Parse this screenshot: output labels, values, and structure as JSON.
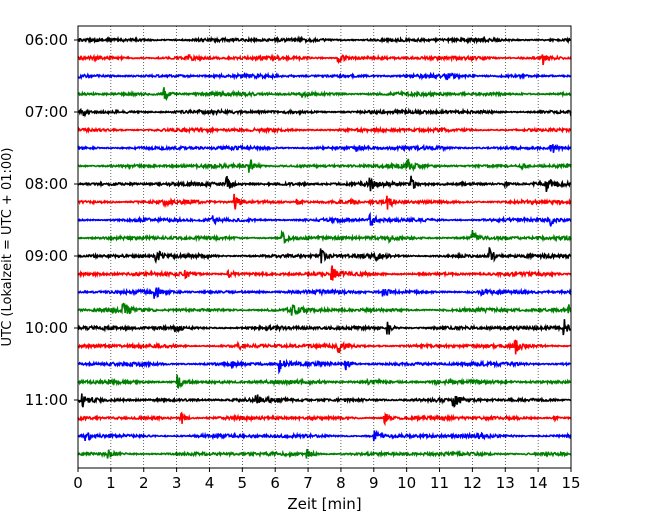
{
  "chart_data": {
    "type": "line",
    "title": "",
    "xlabel": "Zeit  [min]",
    "ylabel": "UTC (Lokalzeit = UTC + 01:00)",
    "xlim": [
      0,
      15
    ],
    "x_ticks": [
      "0",
      "1",
      "2",
      "3",
      "4",
      "5",
      "6",
      "7",
      "8",
      "9",
      "10",
      "11",
      "12",
      "13",
      "14",
      "15"
    ],
    "y_tick_labels": [
      "06:00",
      "07:00",
      "08:00",
      "09:00",
      "10:00",
      "11:00"
    ],
    "grid": "vertical dotted",
    "trace_interval_min": 15,
    "color_cycle": [
      "#000000",
      "#ff0000",
      "#0000ff",
      "#008000"
    ],
    "traces": [
      {
        "start": "06:00",
        "events": []
      },
      {
        "start": "06:15",
        "events": [
          [
            7.95,
            0.8
          ],
          [
            14.15,
            0.7
          ],
          [
            3.4,
            0.25
          ]
        ]
      },
      {
        "start": "06:30",
        "events": [
          [
            11.25,
            0.35
          ]
        ]
      },
      {
        "start": "06:45",
        "events": [
          [
            2.65,
            0.7
          ],
          [
            6.85,
            0.4
          ]
        ]
      },
      {
        "start": "07:00",
        "events": [
          [
            0.1,
            0.6
          ]
        ]
      },
      {
        "start": "07:15",
        "events": []
      },
      {
        "start": "07:30",
        "events": [
          [
            14.4,
            0.8
          ],
          [
            8.5,
            0.3
          ]
        ]
      },
      {
        "start": "07:45",
        "events": [
          [
            5.25,
            0.8
          ],
          [
            10.05,
            0.6
          ],
          [
            13.5,
            0.3
          ]
        ]
      },
      {
        "start": "08:00",
        "events": [
          [
            4.55,
            0.8
          ],
          [
            8.9,
            0.6
          ],
          [
            10.15,
            0.9
          ],
          [
            14.25,
            0.8
          ],
          [
            13.0,
            0.3
          ]
        ]
      },
      {
        "start": "08:15",
        "events": [
          [
            4.8,
            0.8
          ],
          [
            9.45,
            0.8
          ],
          [
            2.6,
            0.3
          ],
          [
            6.7,
            0.3
          ]
        ]
      },
      {
        "start": "08:30",
        "events": [
          [
            8.9,
            0.8
          ],
          [
            14.4,
            0.6
          ],
          [
            4.1,
            0.4
          ]
        ]
      },
      {
        "start": "08:45",
        "events": [
          [
            6.25,
            0.6
          ],
          [
            12.0,
            0.8
          ],
          [
            9.5,
            0.3
          ]
        ]
      },
      {
        "start": "09:00",
        "events": [
          [
            2.4,
            0.8
          ],
          [
            7.4,
            0.8
          ],
          [
            12.55,
            0.9
          ],
          [
            9.1,
            0.3
          ]
        ]
      },
      {
        "start": "09:15",
        "events": [
          [
            7.75,
            0.8
          ],
          [
            3.3,
            0.3
          ],
          [
            4.6,
            0.45
          ]
        ]
      },
      {
        "start": "09:30",
        "events": [
          [
            2.35,
            0.8
          ],
          [
            9.3,
            0.6
          ],
          [
            12.3,
            0.3
          ]
        ]
      },
      {
        "start": "09:45",
        "events": [
          [
            1.4,
            0.8
          ],
          [
            6.55,
            0.7
          ],
          [
            14.9,
            0.9
          ]
        ]
      },
      {
        "start": "10:00",
        "events": [
          [
            9.45,
            0.8
          ],
          [
            14.8,
            0.9
          ],
          [
            3.0,
            0.3
          ]
        ]
      },
      {
        "start": "10:15",
        "events": [
          [
            7.95,
            0.7
          ],
          [
            13.3,
            0.9
          ],
          [
            4.9,
            0.3
          ]
        ]
      },
      {
        "start": "10:30",
        "events": [
          [
            6.15,
            0.8
          ],
          [
            8.15,
            0.6
          ],
          [
            4.7,
            0.4
          ]
        ]
      },
      {
        "start": "10:45",
        "events": [
          [
            3.05,
            0.8
          ],
          [
            8.85,
            0.4
          ],
          [
            10.9,
            0.3
          ]
        ]
      },
      {
        "start": "11:00",
        "events": [
          [
            0.15,
            0.6
          ],
          [
            5.45,
            0.5
          ],
          [
            11.45,
            0.9
          ]
        ]
      },
      {
        "start": "11:15",
        "events": [
          [
            3.15,
            0.7
          ],
          [
            9.35,
            0.6
          ],
          [
            14.5,
            0.3
          ]
        ]
      },
      {
        "start": "11:30",
        "events": [
          [
            0.25,
            0.7
          ],
          [
            9.0,
            0.7
          ],
          [
            12.2,
            0.25
          ]
        ]
      },
      {
        "start": "11:45",
        "events": [
          [
            0.9,
            0.5
          ],
          [
            7.0,
            0.5
          ]
        ]
      }
    ]
  }
}
